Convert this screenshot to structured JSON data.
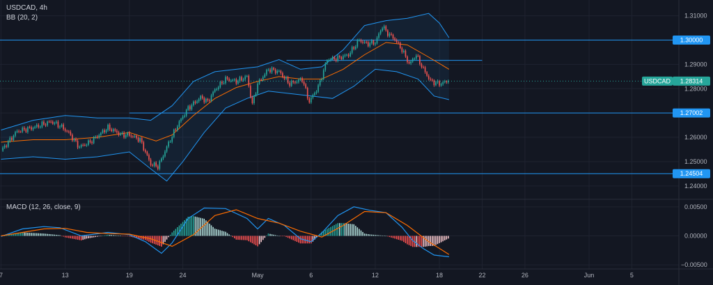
{
  "header": {
    "symbol": "USDCAD",
    "interval": "4h",
    "bb_label": "BB (20, 2)",
    "macd_label": "MACD (12, 26, close, 9)"
  },
  "colors": {
    "background": "#131722",
    "up_candle": "#26a69a",
    "down_candle": "#ef5350",
    "bb_band": "#2196f3",
    "bb_basis": "#ff6d00",
    "level_line": "#2196f3",
    "macd_line": "#2196f3",
    "signal_line": "#ff6d00",
    "last_price_tag": "#26a69a",
    "level_tag": "#2196f3"
  },
  "chart_data": [
    {
      "type": "candlestick",
      "symbol": "USDCAD",
      "interval": "4h",
      "indicator": "BB (20, 2)",
      "ylim": [
        1.2345,
        1.3165
      ],
      "y_ticks": [
        1.24,
        1.25,
        1.26,
        1.27,
        1.28,
        1.29,
        1.3,
        1.31
      ],
      "y_tick_labels": [
        "1.24000",
        "1.25000",
        "1.26000",
        "1.27000",
        "1.28000",
        "1.29000",
        "1.30000",
        "1.31000"
      ],
      "x_ticks": [
        {
          "label": "7",
          "day": 0
        },
        {
          "label": "13",
          "day": 6
        },
        {
          "label": "19",
          "day": 12
        },
        {
          "label": "24",
          "day": 17
        },
        {
          "label": "May",
          "day": 24
        },
        {
          "label": "6",
          "day": 29
        },
        {
          "label": "12",
          "day": 35
        },
        {
          "label": "18",
          "day": 41
        },
        {
          "label": "22",
          "day": 45
        },
        {
          "label": "26",
          "day": 49
        },
        {
          "label": "Jun",
          "day": 55
        },
        {
          "label": "5",
          "day": 59
        }
      ],
      "x_range_days": [
        -0.1,
        63.4
      ],
      "data_end_day": 41.9,
      "close_path": [
        [
          0,
          1.2545
        ],
        [
          1.5,
          1.2625
        ],
        [
          3,
          1.264
        ],
        [
          4.7,
          1.2665
        ],
        [
          5.6,
          1.2645
        ],
        [
          6.3,
          1.262
        ],
        [
          7.3,
          1.256
        ],
        [
          8.3,
          1.258
        ],
        [
          10,
          1.264
        ],
        [
          11.3,
          1.261
        ],
        [
          12,
          1.261
        ],
        [
          13,
          1.259
        ],
        [
          14,
          1.249
        ],
        [
          14.7,
          1.248
        ],
        [
          15.5,
          1.256
        ],
        [
          16.5,
          1.265
        ],
        [
          17.5,
          1.272
        ],
        [
          18.7,
          1.2765
        ],
        [
          19.3,
          1.2745
        ],
        [
          20,
          1.2795
        ],
        [
          21,
          1.284
        ],
        [
          22,
          1.283
        ],
        [
          23,
          1.285
        ],
        [
          23.5,
          1.2735
        ],
        [
          24,
          1.282
        ],
        [
          25,
          1.288
        ],
        [
          26,
          1.287
        ],
        [
          27,
          1.282
        ],
        [
          28.2,
          1.284
        ],
        [
          28.8,
          1.2745
        ],
        [
          29.7,
          1.281
        ],
        [
          30.5,
          1.292
        ],
        [
          31.5,
          1.2925
        ],
        [
          32.5,
          1.294
        ],
        [
          33.5,
          1.3
        ],
        [
          34.2,
          1.2985
        ],
        [
          35,
          1.299
        ],
        [
          35.7,
          1.306
        ],
        [
          36,
          1.3035
        ],
        [
          36.8,
          1.3005
        ],
        [
          37.5,
          1.296
        ],
        [
          38.2,
          1.29
        ],
        [
          38.8,
          1.294
        ],
        [
          39.5,
          1.288
        ],
        [
          40.2,
          1.283
        ],
        [
          41,
          1.282
        ],
        [
          41.9,
          1.28314
        ]
      ],
      "bb_basis_path": [
        [
          0,
          1.258
        ],
        [
          3,
          1.259
        ],
        [
          6,
          1.259
        ],
        [
          9,
          1.26
        ],
        [
          12,
          1.262
        ],
        [
          14.5,
          1.2585
        ],
        [
          16,
          1.261
        ],
        [
          18,
          1.269
        ],
        [
          20,
          1.276
        ],
        [
          22,
          1.2805
        ],
        [
          24,
          1.283
        ],
        [
          26,
          1.285
        ],
        [
          28,
          1.284
        ],
        [
          30,
          1.284
        ],
        [
          32,
          1.288
        ],
        [
          34,
          1.294
        ],
        [
          36,
          1.299
        ],
        [
          38,
          1.298
        ],
        [
          40,
          1.293
        ],
        [
          41.9,
          1.288
        ]
      ],
      "bb_upper_path": [
        [
          0,
          1.263
        ],
        [
          3,
          1.267
        ],
        [
          6,
          1.269
        ],
        [
          9,
          1.268
        ],
        [
          12,
          1.268
        ],
        [
          14,
          1.267
        ],
        [
          16,
          1.273
        ],
        [
          18,
          1.283
        ],
        [
          20,
          1.287
        ],
        [
          22,
          1.288
        ],
        [
          24,
          1.289
        ],
        [
          26,
          1.292
        ],
        [
          28,
          1.288
        ],
        [
          30,
          1.289
        ],
        [
          32,
          1.296
        ],
        [
          34,
          1.306
        ],
        [
          36,
          1.308
        ],
        [
          38,
          1.309
        ],
        [
          40,
          1.311
        ],
        [
          41,
          1.307
        ],
        [
          41.9,
          1.301
        ]
      ],
      "bb_lower_path": [
        [
          0,
          1.251
        ],
        [
          3,
          1.252
        ],
        [
          6,
          1.251
        ],
        [
          9,
          1.252
        ],
        [
          12,
          1.254
        ],
        [
          14,
          1.247
        ],
        [
          15.5,
          1.242
        ],
        [
          17,
          1.25
        ],
        [
          19,
          1.262
        ],
        [
          21,
          1.272
        ],
        [
          23,
          1.276
        ],
        [
          25,
          1.279
        ],
        [
          27,
          1.278
        ],
        [
          29,
          1.277
        ],
        [
          31,
          1.276
        ],
        [
          33,
          1.281
        ],
        [
          35,
          1.288
        ],
        [
          37,
          1.287
        ],
        [
          39,
          1.284
        ],
        [
          40.5,
          1.277
        ],
        [
          41.9,
          1.2755
        ]
      ],
      "horizontal_levels": [
        {
          "value": 1.3,
          "label": "1.30000",
          "from_day": -0.1,
          "to_day": 63.4
        },
        {
          "value": 1.29165,
          "from_day": 26.7,
          "to_day": 45
        },
        {
          "value": 1.27002,
          "label": "1.27002",
          "from_day": 12,
          "to_day": 63.4
        },
        {
          "value": 1.24504,
          "label": "1.24504",
          "from_day": -0.1,
          "to_day": 63.4
        }
      ],
      "last_price": {
        "symbol": "USDCAD",
        "label": "1.28314",
        "value": 1.28314
      }
    },
    {
      "type": "histogram+line",
      "indicator": "MACD (12, 26, close, 9)",
      "ylim": [
        -0.0057,
        0.0063
      ],
      "y_ticks": [
        -0.005,
        0,
        0.005
      ],
      "y_tick_labels": [
        "−0.00500",
        "0.00000",
        "0.00500"
      ],
      "macd_path": [
        [
          0,
          -0.0001
        ],
        [
          2,
          0.0012
        ],
        [
          4,
          0.0016
        ],
        [
          5.5,
          0.0014
        ],
        [
          7.5,
          0.0
        ],
        [
          10,
          0.0006
        ],
        [
          12,
          0.0002
        ],
        [
          13.5,
          -0.001
        ],
        [
          15,
          -0.003
        ],
        [
          16,
          -0.0012
        ],
        [
          17.5,
          0.003
        ],
        [
          19,
          0.0048
        ],
        [
          21,
          0.0047
        ],
        [
          23,
          0.003
        ],
        [
          24,
          0.0012
        ],
        [
          25,
          0.003
        ],
        [
          26.5,
          0.0018
        ],
        [
          28,
          -0.0005
        ],
        [
          29,
          -0.001
        ],
        [
          30,
          0.0005
        ],
        [
          31.5,
          0.0035
        ],
        [
          33,
          0.005
        ],
        [
          34.5,
          0.0044
        ],
        [
          36,
          0.004
        ],
        [
          37.5,
          0.0015
        ],
        [
          38.5,
          -0.0008
        ],
        [
          39.5,
          -0.0022
        ],
        [
          40.5,
          -0.0033
        ],
        [
          41.9,
          -0.0036
        ]
      ],
      "signal_path": [
        [
          0,
          0.0
        ],
        [
          2,
          0.0006
        ],
        [
          4,
          0.0012
        ],
        [
          6,
          0.0013
        ],
        [
          8,
          0.0006
        ],
        [
          10,
          0.0004
        ],
        [
          12,
          0.0003
        ],
        [
          14,
          -0.0005
        ],
        [
          16,
          -0.0018
        ],
        [
          18,
          0.0002
        ],
        [
          20,
          0.0035
        ],
        [
          22,
          0.0045
        ],
        [
          24,
          0.003
        ],
        [
          26,
          0.0022
        ],
        [
          28,
          0.0008
        ],
        [
          30,
          -0.0002
        ],
        [
          32,
          0.0018
        ],
        [
          34,
          0.0042
        ],
        [
          36,
          0.004
        ],
        [
          38,
          0.0018
        ],
        [
          40,
          -0.001
        ],
        [
          41.9,
          -0.0032
        ]
      ]
    }
  ]
}
